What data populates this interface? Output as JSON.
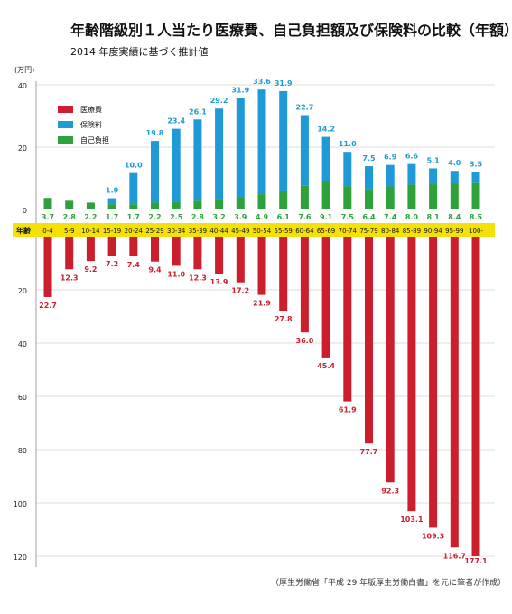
{
  "chart_data": {
    "type": "bar",
    "title": "年齢階級別１人当たり医療費、自己負担額及び保険料の比較（年額）",
    "subtitle": "2014 年度実績に基づく推計値",
    "unit_label": "(万円)",
    "age_axis_label": "年齢",
    "source_note": "（厚生労働省「平成 29 年版厚生労働白書」を元に筆者が作成）",
    "categories": [
      "0-4",
      "5-9",
      "10-14",
      "15-19",
      "20-24",
      "25-29",
      "30-34",
      "35-39",
      "40-44",
      "45-49",
      "50-54",
      "55-59",
      "60-64",
      "65-69",
      "70-74",
      "75-79",
      "80-84",
      "85-89",
      "90-94",
      "95-99",
      "100-"
    ],
    "series": [
      {
        "name": "医療費",
        "color": "#cc1f2d",
        "direction": "down",
        "values": [
          22.7,
          12.3,
          9.2,
          7.2,
          7.4,
          9.4,
          11.0,
          12.3,
          13.9,
          17.2,
          21.9,
          27.8,
          36.0,
          45.4,
          61.9,
          77.7,
          92.3,
          103.1,
          109.3,
          116.7,
          177.1
        ]
      },
      {
        "name": "保険料",
        "color": "#1e9bd7",
        "direction": "up",
        "values": [
          null,
          null,
          null,
          1.9,
          10.0,
          19.8,
          23.4,
          26.1,
          29.2,
          31.9,
          33.6,
          31.9,
          22.7,
          14.2,
          11.0,
          7.5,
          6.9,
          6.6,
          5.1,
          4.0,
          3.5
        ]
      },
      {
        "name": "自己負担",
        "color": "#2ea13a",
        "direction": "up",
        "values": [
          3.7,
          2.8,
          2.2,
          1.7,
          1.7,
          2.2,
          2.5,
          2.8,
          3.2,
          3.9,
          4.9,
          6.1,
          7.6,
          9.1,
          7.5,
          6.4,
          7.4,
          8.0,
          8.1,
          8.4,
          8.5
        ]
      }
    ],
    "upper_axis": {
      "ticks": [
        0,
        20,
        40
      ],
      "ylim": [
        0,
        40
      ]
    },
    "lower_axis": {
      "ticks": [
        20,
        40,
        60,
        80,
        100,
        120
      ],
      "ylim": [
        0,
        120
      ]
    },
    "grid": true,
    "legend_position": "top-left"
  }
}
